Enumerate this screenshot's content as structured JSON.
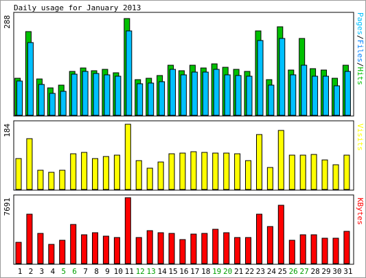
{
  "chart_data": [
    {
      "type": "bar",
      "panel": "pages-files-hits",
      "title": "Daily usage for January 2013",
      "ylabel_parts": [
        {
          "text": "Pages",
          "color": "#00c0ff"
        },
        {
          "text": "/",
          "color": "#000000"
        },
        {
          "text": "Files",
          "color": "#0080ff"
        },
        {
          "text": "/",
          "color": "#000000"
        },
        {
          "text": "Hits",
          "color": "#00c000"
        }
      ],
      "ymax_label": "288",
      "ylim": [
        0,
        288
      ],
      "categories": [
        "1",
        "2",
        "3",
        "4",
        "5",
        "6",
        "7",
        "8",
        "9",
        "10",
        "11",
        "12",
        "13",
        "14",
        "15",
        "16",
        "17",
        "18",
        "19",
        "20",
        "21",
        "22",
        "23",
        "24",
        "25",
        "26",
        "27",
        "28",
        "29",
        "30",
        "31"
      ],
      "weekend_days": [
        "5",
        "6",
        "12",
        "13",
        "19",
        "20",
        "26",
        "27"
      ],
      "series": [
        {
          "color": "#00c000",
          "values": [
            107,
            244,
            105,
            80,
            87,
            128,
            138,
            130,
            133,
            124,
            282,
            104,
            107,
            116,
            146,
            130,
            145,
            138,
            150,
            140,
            133,
            128,
            246,
            103,
            258,
            132,
            224,
            135,
            132,
            107,
            146
          ]
        },
        {
          "color": "#00c0ff",
          "values": [
            100,
            212,
            90,
            63,
            69,
            120,
            128,
            122,
            118,
            113,
            245,
            92,
            93,
            98,
            134,
            117,
            126,
            126,
            134,
            117,
            116,
            113,
            218,
            88,
            224,
            118,
            145,
            114,
            113,
            86,
            127
          ]
        }
      ]
    },
    {
      "type": "bar",
      "panel": "visits",
      "ylabel": "Visits",
      "ymax_label": "184",
      "ylim": [
        0,
        184
      ],
      "series": [
        {
          "color": "#ffff00",
          "values": [
            87,
            143,
            55,
            48,
            54,
            100,
            104,
            88,
            92,
            96,
            184,
            81,
            61,
            77,
            100,
            102,
            107,
            104,
            103,
            102,
            101,
            81,
            155,
            62,
            167,
            96,
            96,
            98,
            84,
            69,
            97
          ]
        }
      ]
    },
    {
      "type": "bar",
      "panel": "kbytes",
      "ylabel": "KBytes",
      "ymax_label": "7691",
      "ylim": [
        0,
        7691
      ],
      "series": [
        {
          "color": "#ff0000",
          "values": [
            2450,
            5780,
            3530,
            2240,
            2720,
            4530,
            3370,
            3580,
            3220,
            3030,
            7691,
            3060,
            3860,
            3590,
            3500,
            2810,
            3420,
            3520,
            4040,
            3590,
            3040,
            3050,
            5750,
            4300,
            6780,
            2720,
            3400,
            3400,
            2930,
            2960,
            3790
          ]
        }
      ]
    }
  ]
}
